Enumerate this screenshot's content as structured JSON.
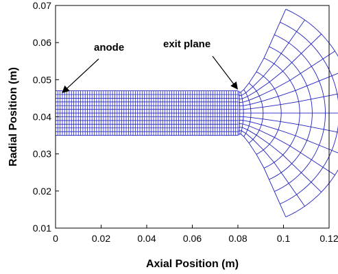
{
  "chart_data": {
    "type": "mesh",
    "xlabel": "Axial Position (m)",
    "ylabel": "Radial Position (m)",
    "xlim": [
      0,
      0.12
    ],
    "ylim": [
      0.01,
      0.07
    ],
    "x_ticks": [
      "0",
      "0.02",
      "0.04",
      "0.06",
      "0.08",
      "0.1",
      "0.12"
    ],
    "y_ticks": [
      "0.07",
      "0.06",
      "0.05",
      "0.04",
      "0.03",
      "0.02",
      "0.01"
    ],
    "grid": false,
    "mesh_color": "#2020c0",
    "channel": {
      "x_range": [
        0,
        0.08
      ],
      "r_inner": 0.035,
      "r_outer": 0.047,
      "axial_cells": 80,
      "radial_cells": 12
    },
    "plume": {
      "center": [
        0.0807,
        0.041
      ],
      "radius_range": [
        0.002,
        0.036
      ],
      "rings": 10,
      "spokes": 13,
      "upper_tip": [
        0.101,
        0.069
      ],
      "lower_tip": [
        0.101,
        0.013
      ]
    },
    "annotations": [
      {
        "text": "anode",
        "point": [
          0.003,
          0.0465
        ]
      },
      {
        "text": "exit plane",
        "point": [
          0.0798,
          0.0475
        ]
      }
    ]
  }
}
